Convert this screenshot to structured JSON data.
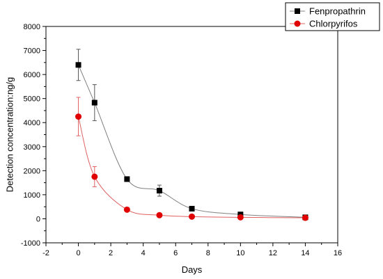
{
  "chart_data": {
    "type": "scatter",
    "xlabel": "Days",
    "ylabel": "Detection concentration:ng/g",
    "xlim": [
      -2,
      16
    ],
    "ylim": [
      -1000,
      8000
    ],
    "x_ticks": [
      -2,
      0,
      2,
      4,
      6,
      8,
      10,
      12,
      14,
      16
    ],
    "y_ticks": [
      -1000,
      0,
      1000,
      2000,
      3000,
      4000,
      5000,
      6000,
      7000,
      8000
    ],
    "grid": false,
    "legend_position": "top-right",
    "series": [
      {
        "name": "Fenpropathrin",
        "color": "#000000",
        "line_color": "#808080",
        "marker": "square",
        "x": [
          0,
          1,
          3,
          5,
          7,
          10,
          14
        ],
        "y": [
          6400,
          4830,
          1650,
          1170,
          420,
          180,
          60
        ],
        "error": [
          650,
          750,
          100,
          230,
          70,
          50,
          40
        ]
      },
      {
        "name": "Chlorpyrifos",
        "color": "#e00000",
        "line_color": "#e06060",
        "marker": "circle",
        "x": [
          0,
          1,
          3,
          5,
          7,
          10,
          14
        ],
        "y": [
          4250,
          1750,
          380,
          150,
          90,
          60,
          40
        ],
        "error": [
          800,
          420,
          60,
          40,
          30,
          25,
          20
        ]
      }
    ]
  }
}
